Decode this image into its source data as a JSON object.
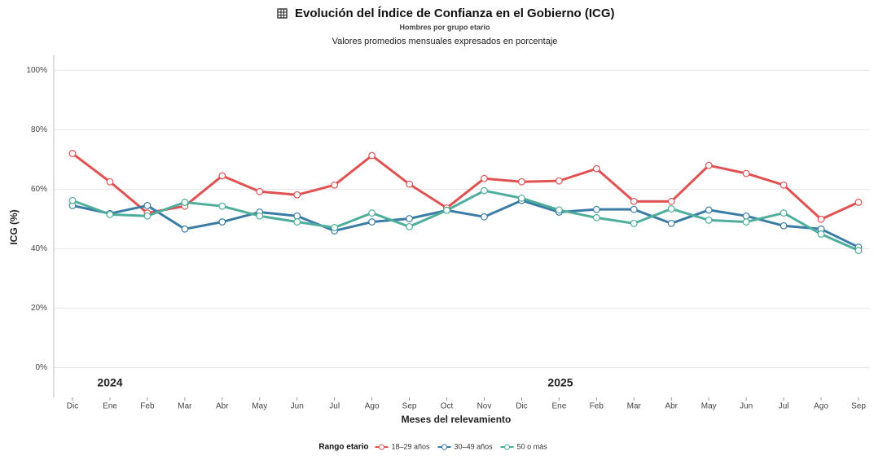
{
  "chart_data": {
    "type": "line",
    "title": "Evolución del Índice de Confianza en el Gobierno (ICG)",
    "subtitle": "Hombres por grupo etario",
    "caption": "Valores promedios mensuales expresados en porcentaje",
    "x_label": "Meses del relevamiento",
    "y_label": "ICG (%)",
    "legend_title": "Rango etario",
    "annotations": [
      "2024",
      "2025"
    ],
    "categories": [
      "Dic",
      "Ene",
      "Feb",
      "Mar",
      "Abr",
      "May",
      "Jun",
      "Jul",
      "Ago",
      "Sep",
      "Oct",
      "Nov",
      "Dic",
      "Ene",
      "Feb",
      "Mar",
      "Abr",
      "May",
      "Jun",
      "Jul",
      "Ago",
      "Sep"
    ],
    "series": [
      {
        "name": "18–29 años",
        "color": "#e05252",
        "values": [
          72,
          62.5,
          52,
          54.3,
          64.5,
          59.2,
          58.1,
          61.4,
          71.3,
          61.7,
          53.7,
          63.6,
          62.5,
          62.8,
          66.9,
          55.9,
          55.9,
          68,
          65.3,
          61.4,
          49.9,
          55.6
        ]
      },
      {
        "name": "30–49 años",
        "color": "#3a7ca5",
        "values": [
          54.5,
          51.8,
          54.5,
          46.6,
          49,
          52.3,
          51,
          46,
          49,
          50.1,
          52.9,
          50.7,
          56.2,
          52.3,
          53.2,
          53.2,
          48.5,
          53,
          51,
          47.7,
          46.6,
          40.5
        ]
      },
      {
        "name": "50 o más",
        "color": "#4fae9b",
        "values": [
          56.2,
          51.5,
          51,
          55.6,
          54.3,
          51,
          49,
          47.1,
          52,
          47.4,
          52.9,
          59.5,
          57,
          53,
          50.4,
          48.5,
          53.4,
          49.6,
          49,
          52,
          44.9,
          39.4
        ]
      }
    ],
    "ylim": [
      -10,
      105
    ],
    "yticks": [
      {
        "value": 0,
        "label": "0%"
      },
      {
        "value": 20,
        "label": "20%"
      },
      {
        "value": 40,
        "label": "40%"
      },
      {
        "value": 60,
        "label": "60%"
      },
      {
        "value": 80,
        "label": "80%"
      },
      {
        "value": 100,
        "label": "100%"
      }
    ],
    "grid": true,
    "legend": "bottom"
  }
}
